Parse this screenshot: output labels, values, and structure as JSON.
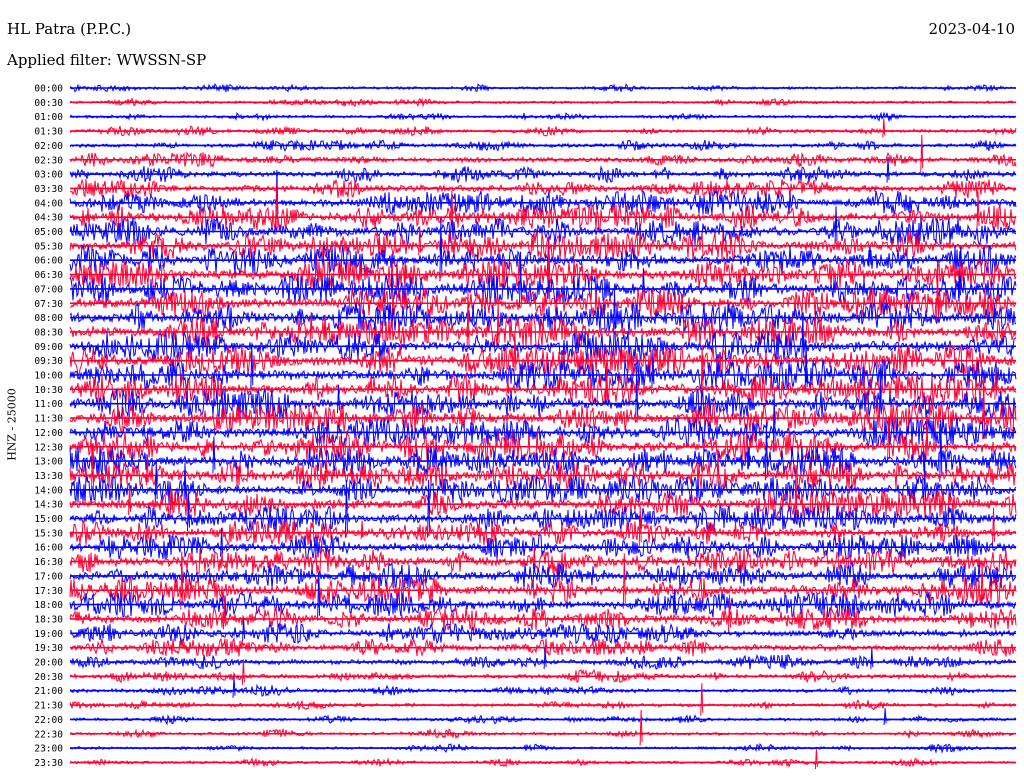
{
  "header": {
    "station": "HL Patra (P.P.C.)",
    "date": "2023-04-10",
    "filter": "Applied filter: WWSSN-SP"
  },
  "channel_label": "HNZ - 25000",
  "chart_data": {
    "type": "line",
    "title": "HL Patra (P.P.C.)",
    "subtitle": "Applied filter: WWSSN-SP",
    "date": "2023-04-10",
    "ylabel": "HNZ - 25000",
    "xlabel": "",
    "trace_interval_minutes": 30,
    "row_labels": [
      "00:00",
      "00:30",
      "01:00",
      "01:30",
      "02:00",
      "02:30",
      "03:00",
      "03:30",
      "04:00",
      "04:30",
      "05:00",
      "05:30",
      "06:00",
      "06:30",
      "07:00",
      "07:30",
      "08:00",
      "08:30",
      "09:00",
      "09:30",
      "10:00",
      "10:30",
      "11:00",
      "11:30",
      "12:00",
      "12:30",
      "13:00",
      "13:30",
      "14:00",
      "14:30",
      "15:00",
      "15:30",
      "16:00",
      "16:30",
      "17:00",
      "17:30",
      "18:00",
      "18:30",
      "19:00",
      "19:30",
      "20:00",
      "20:30",
      "21:00",
      "21:30",
      "22:00",
      "22:30",
      "23:00",
      "23:30"
    ],
    "relative_amplitude": [
      0.1,
      0.09,
      0.1,
      0.15,
      0.18,
      0.28,
      0.32,
      0.42,
      0.55,
      0.62,
      0.66,
      0.68,
      0.7,
      0.7,
      0.72,
      0.72,
      0.74,
      0.74,
      0.74,
      0.74,
      0.74,
      0.74,
      0.72,
      0.72,
      0.72,
      0.7,
      0.7,
      0.68,
      0.68,
      0.66,
      0.62,
      0.58,
      0.58,
      0.6,
      0.62,
      0.62,
      0.6,
      0.52,
      0.44,
      0.38,
      0.28,
      0.22,
      0.18,
      0.14,
      0.12,
      0.12,
      0.1,
      0.09
    ],
    "series_colors": [
      "#0000ff",
      "#ff0033"
    ],
    "grid": false,
    "legend": "none"
  },
  "colors": {
    "trace_even": "#0000ff",
    "trace_odd": "#ff0033",
    "background": "#ffffff",
    "text": "#000000"
  }
}
